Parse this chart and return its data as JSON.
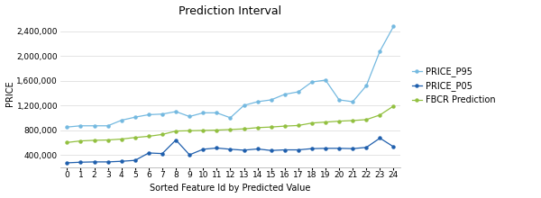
{
  "title": "Prediction Interval",
  "xlabel": "Sorted Feature Id by Predicted Value",
  "ylabel": "PRICE",
  "x": [
    0,
    1,
    2,
    3,
    4,
    5,
    6,
    7,
    8,
    9,
    10,
    11,
    12,
    13,
    14,
    15,
    16,
    17,
    18,
    19,
    20,
    21,
    22,
    23,
    24
  ],
  "p95": [
    850000,
    870000,
    870000,
    870000,
    960000,
    1010000,
    1050000,
    1060000,
    1100000,
    1020000,
    1080000,
    1080000,
    1000000,
    1200000,
    1260000,
    1290000,
    1380000,
    1420000,
    1580000,
    1610000,
    1290000,
    1260000,
    1520000,
    2080000,
    2480000
  ],
  "p05": [
    270000,
    280000,
    285000,
    285000,
    295000,
    310000,
    430000,
    420000,
    640000,
    400000,
    490000,
    510000,
    490000,
    475000,
    495000,
    470000,
    480000,
    480000,
    500000,
    505000,
    505000,
    500000,
    520000,
    670000,
    530000
  ],
  "fbcr": [
    600000,
    625000,
    635000,
    640000,
    655000,
    680000,
    700000,
    730000,
    785000,
    790000,
    795000,
    800000,
    810000,
    820000,
    840000,
    850000,
    865000,
    875000,
    915000,
    930000,
    945000,
    955000,
    970000,
    1045000,
    1190000
  ],
  "p95_color": "#74B9E0",
  "p05_color": "#1F5FAD",
  "fbcr_color": "#92C040",
  "background_color": "#FFFFFF",
  "grid_color": "#D8D8D8",
  "ylim": [
    200000,
    2600000
  ],
  "yticks": [
    400000,
    800000,
    1200000,
    1600000,
    2000000,
    2400000
  ],
  "title_fontsize": 9,
  "axis_fontsize": 7,
  "tick_fontsize": 6.5,
  "legend_fontsize": 7
}
